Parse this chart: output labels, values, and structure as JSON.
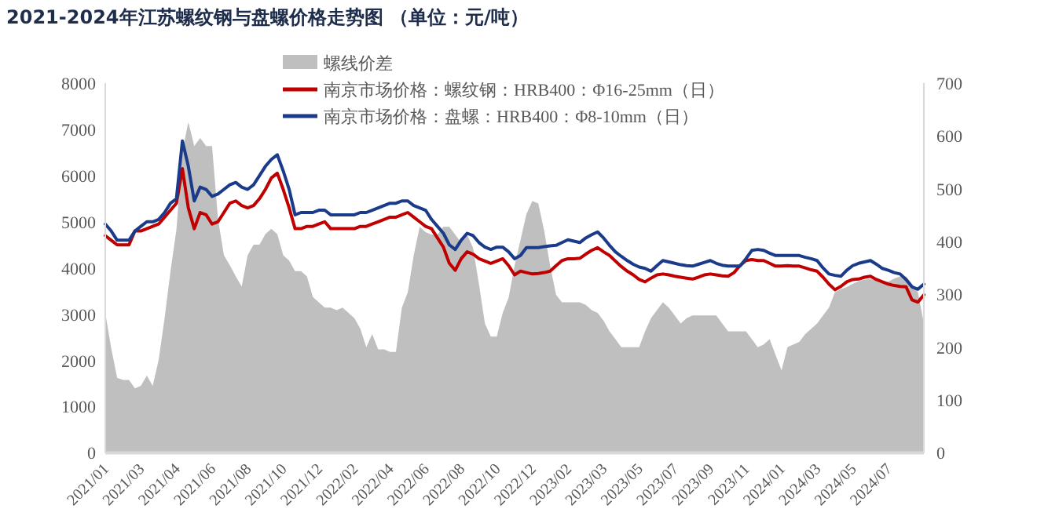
{
  "chart_data": {
    "type": "line",
    "title": "2021-2024年江苏螺纹钢与盘螺价格走势图 （单位：元/吨）",
    "categories": [
      "2021/01",
      null,
      null,
      null,
      null,
      null,
      "2021/03",
      null,
      null,
      null,
      null,
      null,
      "2021/04",
      null,
      null,
      null,
      null,
      null,
      "2021/06",
      null,
      null,
      null,
      null,
      null,
      "2021/08",
      null,
      null,
      null,
      null,
      null,
      "2021/10",
      null,
      null,
      null,
      null,
      null,
      "2021/12",
      null,
      null,
      null,
      null,
      null,
      "2022/02",
      null,
      null,
      null,
      null,
      null,
      "2022/04",
      null,
      null,
      null,
      null,
      null,
      "2022/06",
      null,
      null,
      null,
      null,
      null,
      "2022/08",
      null,
      null,
      null,
      null,
      null,
      "2022/10",
      null,
      null,
      null,
      null,
      null,
      "2022/12",
      null,
      null,
      null,
      null,
      null,
      "2023/02",
      null,
      null,
      null,
      null,
      null,
      "2023/03",
      null,
      null,
      null,
      null,
      null,
      "2023/05",
      null,
      null,
      null,
      null,
      null,
      "2023/07",
      null,
      null,
      null,
      null,
      null,
      "2023/09",
      null,
      null,
      null,
      null,
      null,
      "2023/11",
      null,
      null,
      null,
      null,
      null,
      "2024/01",
      null,
      null,
      null,
      null,
      null,
      "2024/03",
      null,
      null,
      null,
      null,
      null,
      "2024/05",
      null,
      null,
      null,
      null,
      null,
      "2024/07",
      null,
      null,
      null,
      null,
      null,
      null
    ],
    "series": [
      {
        "name": "螺线价差",
        "type": "area",
        "axis": "y2",
        "color": "#bfbfbf",
        "values": [
          265,
          198,
          142,
          138,
          138,
          122,
          127,
          146,
          127,
          176,
          255,
          344,
          423,
          571,
          626,
          581,
          596,
          581,
          581,
          443,
          374,
          355,
          334,
          315,
          374,
          394,
          394,
          414,
          424,
          414,
          374,
          364,
          344,
          344,
          334,
          295,
          285,
          275,
          275,
          270,
          275,
          265,
          255,
          235,
          200,
          225,
          196,
          196,
          191,
          191,
          275,
          304,
          374,
          428,
          418,
          413,
          413,
          428,
          428,
          413,
          398,
          413,
          388,
          319,
          245,
          220,
          220,
          265,
          294,
          354,
          403,
          452,
          477,
          472,
          420,
          354,
          299,
          285,
          285,
          285,
          285,
          280,
          270,
          265,
          250,
          230,
          215,
          200,
          200,
          200,
          200,
          230,
          255,
          270,
          285,
          275,
          260,
          245,
          255,
          260,
          260,
          260,
          260,
          260,
          245,
          230,
          230,
          230,
          230,
          215,
          200,
          205,
          215,
          185,
          156,
          200,
          205,
          210,
          225,
          235,
          245,
          260,
          275,
          304,
          310,
          314,
          320,
          325,
          328,
          329,
          326,
          325,
          324,
          330,
          334,
          334,
          320,
          304,
          245
        ]
      },
      {
        "name": "南京市场价格：螺纹钢：HRB400：Φ16-25mm（日）",
        "color": "#c00000",
        "values": [
          4700,
          4600,
          4500,
          4500,
          4500,
          4800,
          4800,
          4850,
          4900,
          4950,
          5100,
          5250,
          5400,
          6150,
          5300,
          4850,
          5200,
          5150,
          4950,
          5000,
          5200,
          5400,
          5450,
          5350,
          5300,
          5350,
          5500,
          5700,
          5950,
          6050,
          5700,
          5300,
          4850,
          4850,
          4900,
          4900,
          4950,
          5000,
          4850,
          4850,
          4850,
          4850,
          4850,
          4900,
          4900,
          4950,
          5000,
          5050,
          5100,
          5100,
          5150,
          5200,
          5100,
          5000,
          4900,
          4850,
          4650,
          4450,
          4100,
          3950,
          4200,
          4350,
          4300,
          4200,
          4150,
          4100,
          4150,
          4200,
          4050,
          3850,
          3930,
          3900,
          3870,
          3880,
          3900,
          3930,
          4050,
          4160,
          4200,
          4200,
          4210,
          4300,
          4380,
          4440,
          4350,
          4270,
          4150,
          4030,
          3930,
          3850,
          3750,
          3700,
          3780,
          3850,
          3870,
          3850,
          3820,
          3800,
          3780,
          3760,
          3800,
          3850,
          3870,
          3850,
          3830,
          3820,
          3900,
          4050,
          4160,
          4180,
          4160,
          4160,
          4100,
          4040,
          4040,
          4050,
          4040,
          4040,
          4000,
          3960,
          3930,
          3800,
          3650,
          3530,
          3600,
          3700,
          3750,
          3760,
          3800,
          3820,
          3750,
          3700,
          3650,
          3620,
          3600,
          3590,
          3310,
          3260,
          3420
        ]
      },
      {
        "name": "南京市场价格：盘螺：HRB400：Φ8-10mm（日）",
        "color": "#1a3a8a",
        "values": [
          4950,
          4800,
          4600,
          4600,
          4600,
          4800,
          4900,
          5000,
          5000,
          5050,
          5200,
          5400,
          5500,
          6750,
          6200,
          5450,
          5750,
          5700,
          5550,
          5600,
          5700,
          5800,
          5850,
          5750,
          5700,
          5800,
          6000,
          6200,
          6350,
          6450,
          6100,
          5700,
          5150,
          5200,
          5200,
          5200,
          5250,
          5250,
          5150,
          5150,
          5150,
          5150,
          5150,
          5200,
          5200,
          5250,
          5300,
          5350,
          5400,
          5400,
          5450,
          5450,
          5350,
          5300,
          5250,
          5050,
          4900,
          4750,
          4500,
          4400,
          4600,
          4750,
          4700,
          4550,
          4450,
          4400,
          4450,
          4450,
          4350,
          4200,
          4270,
          4440,
          4440,
          4440,
          4460,
          4480,
          4490,
          4550,
          4610,
          4580,
          4550,
          4650,
          4720,
          4780,
          4650,
          4490,
          4350,
          4250,
          4160,
          4080,
          4020,
          3990,
          3930,
          4050,
          4160,
          4130,
          4100,
          4070,
          4050,
          4040,
          4080,
          4120,
          4160,
          4100,
          4060,
          4040,
          4040,
          4040,
          4200,
          4380,
          4400,
          4380,
          4320,
          4270,
          4270,
          4270,
          4270,
          4270,
          4230,
          4200,
          4160,
          4000,
          3870,
          3840,
          3820,
          3950,
          4050,
          4100,
          4130,
          4160,
          4080,
          3990,
          3950,
          3900,
          3870,
          3750,
          3590,
          3540,
          3650
        ]
      }
    ],
    "ylim": [
      0,
      8000
    ],
    "yticks": [
      0,
      1000,
      2000,
      3000,
      4000,
      5000,
      6000,
      7000,
      8000
    ],
    "y2lim": [
      0,
      700
    ],
    "y2ticks": [
      0,
      100,
      200,
      300,
      400,
      500,
      600,
      700
    ],
    "legend": "top",
    "grid": false
  }
}
